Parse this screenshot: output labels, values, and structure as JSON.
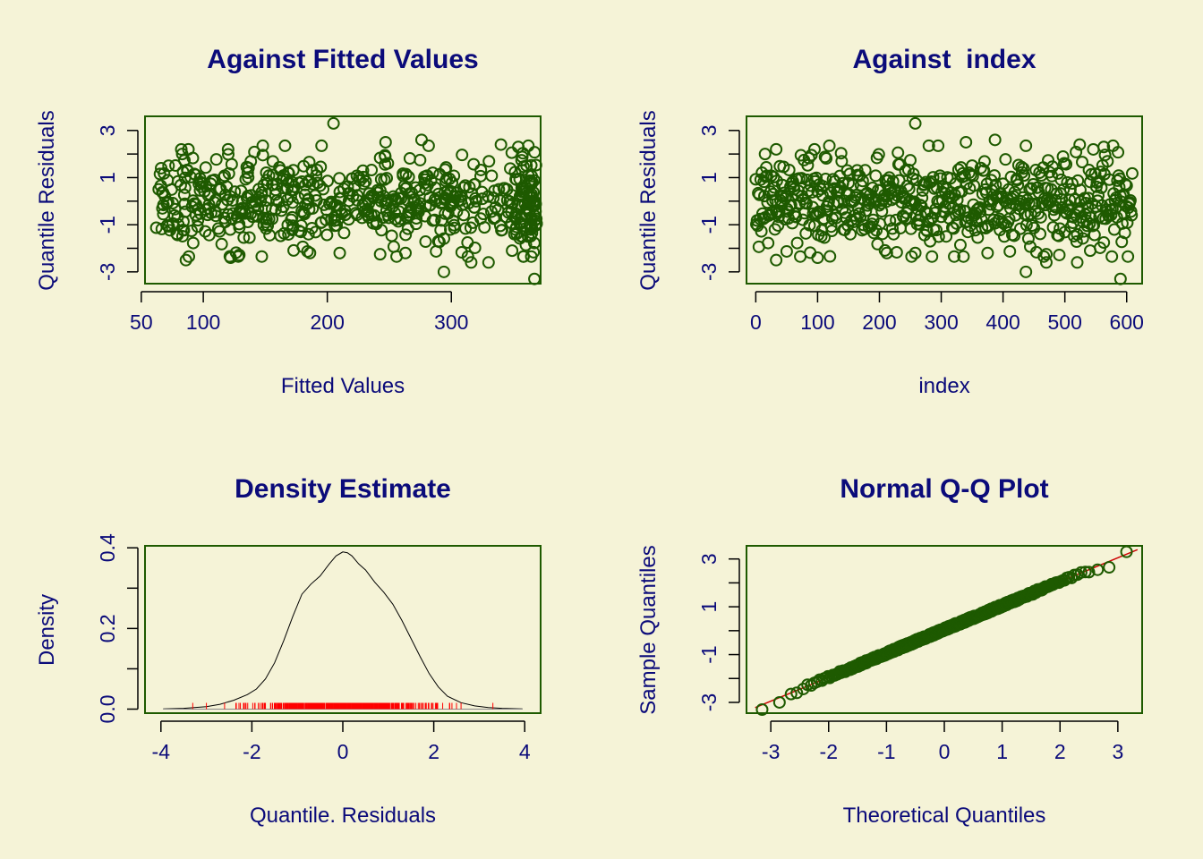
{
  "colors": {
    "background": "#F5F3D7",
    "text": "#0B0B7A",
    "points": "#1E5A00",
    "frame": "#1E5A00",
    "rug": "#FF0000",
    "refline": "#CC0000",
    "density": "#000000"
  },
  "chart_data": [
    {
      "id": "fitted",
      "type": "scatter",
      "title": "Against Fitted Values",
      "xlabel": "Fitted Values",
      "ylabel": "Quantile Residuals",
      "xlim": [
        53,
        372
      ],
      "ylim": [
        -3.5,
        3.6
      ],
      "xticks": [
        50,
        100,
        200,
        300
      ],
      "yticks": [
        -3,
        -2,
        -1,
        0,
        1,
        2,
        3
      ],
      "ytick_labels": [
        "-3",
        "",
        "-1",
        "",
        "1",
        "",
        "3"
      ],
      "n_points": 610,
      "x_range": [
        62,
        369
      ],
      "y_range": [
        -3.3,
        3.3
      ],
      "points": [
        [
          205,
          3.3
        ],
        [
          367,
          -3.3
        ],
        [
          294,
          -3.0
        ],
        [
          86,
          -2.5
        ],
        [
          122,
          -2.4
        ],
        [
          276,
          2.6
        ],
        [
          247,
          2.5
        ],
        [
          340,
          2.4
        ],
        [
          354,
          2.3
        ],
        [
          120,
          2.2
        ],
        [
          88,
          2.2
        ],
        [
          83,
          2.0
        ],
        [
          330,
          -2.6
        ],
        [
          316,
          -2.6
        ],
        [
          263,
          -2.2
        ],
        [
          186,
          -2.2
        ],
        [
          210,
          -2.2
        ],
        [
          349,
          -2.1
        ],
        [
          72,
          1.5
        ],
        [
          66,
          1.4
        ]
      ]
    },
    {
      "id": "index",
      "type": "scatter",
      "title": "Against  index",
      "xlabel": "index",
      "ylabel": "Quantile Residuals",
      "xlim": [
        -15,
        625
      ],
      "ylim": [
        -3.5,
        3.6
      ],
      "xticks": [
        0,
        100,
        200,
        300,
        400,
        500,
        600
      ],
      "yticks": [
        -3,
        -2,
        -1,
        0,
        1,
        2,
        3
      ],
      "ytick_labels": [
        "-3",
        "",
        "-1",
        "",
        "1",
        "",
        "3"
      ],
      "n_points": 610,
      "x_range": [
        0,
        610
      ],
      "y_range": [
        -3.3,
        3.3
      ],
      "points": [
        [
          258,
          3.3
        ],
        [
          590,
          -3.3
        ],
        [
          437,
          -3.0
        ],
        [
          33,
          -2.5
        ],
        [
          100,
          -2.4
        ],
        [
          387,
          2.6
        ],
        [
          340,
          2.5
        ],
        [
          524,
          2.4
        ],
        [
          563,
          2.3
        ],
        [
          95,
          2.2
        ],
        [
          33,
          2.2
        ],
        [
          15,
          2.0
        ],
        [
          470,
          -2.6
        ],
        [
          520,
          -2.6
        ],
        [
          258,
          -2.2
        ],
        [
          212,
          -2.2
        ],
        [
          375,
          -2.2
        ],
        [
          541,
          -2.1
        ]
      ]
    },
    {
      "id": "density",
      "type": "line",
      "title": "Density Estimate",
      "xlabel": "Quantile. Residuals",
      "ylabel": "Density",
      "xlim": [
        -4.35,
        4.35
      ],
      "ylim": [
        -0.01,
        0.405
      ],
      "xticks": [
        -4,
        -2,
        0,
        2,
        4
      ],
      "yticks": [
        0,
        0.1,
        0.2,
        0.3,
        0.4
      ],
      "ytick_labels": [
        "0.0",
        "",
        "0.2",
        "",
        "0.4"
      ],
      "x": [
        -3.95,
        -3.5,
        -3.0,
        -2.7,
        -2.4,
        -2.1,
        -1.9,
        -1.7,
        -1.5,
        -1.3,
        -1.1,
        -0.9,
        -0.7,
        -0.5,
        -0.3,
        -0.15,
        0.0,
        0.1,
        0.2,
        0.35,
        0.5,
        0.7,
        0.9,
        1.1,
        1.3,
        1.5,
        1.7,
        1.9,
        2.1,
        2.3,
        2.6,
        2.9,
        3.2,
        3.5,
        3.95
      ],
      "y": [
        0.0005,
        0.002,
        0.006,
        0.012,
        0.022,
        0.036,
        0.05,
        0.075,
        0.115,
        0.17,
        0.23,
        0.285,
        0.31,
        0.33,
        0.36,
        0.38,
        0.39,
        0.388,
        0.38,
        0.36,
        0.345,
        0.315,
        0.29,
        0.26,
        0.22,
        0.175,
        0.13,
        0.088,
        0.055,
        0.032,
        0.016,
        0.008,
        0.004,
        0.002,
        0.0005
      ],
      "rug_range": [
        -3.3,
        3.3
      ]
    },
    {
      "id": "qq",
      "type": "scatter",
      "title": "Normal Q-Q Plot",
      "xlabel": "Theoretical Quantiles",
      "ylabel": "Sample Quantiles",
      "xlim": [
        -3.42,
        3.42
      ],
      "ylim": [
        -3.45,
        3.55
      ],
      "xticks": [
        -3,
        -2,
        -1,
        0,
        1,
        2,
        3
      ],
      "yticks": [
        -3,
        -2,
        -1,
        0,
        1,
        2,
        3
      ],
      "ytick_labels": [
        "-3",
        "",
        "-1",
        "",
        "1",
        "",
        "3"
      ],
      "n_points": 610,
      "reference_line": {
        "slope": 1.0,
        "intercept": 0.05
      },
      "points": [
        [
          -3.15,
          -3.3
        ],
        [
          -2.85,
          -3.0
        ],
        [
          -2.65,
          -2.65
        ],
        [
          -2.55,
          -2.6
        ],
        [
          3.15,
          3.3
        ],
        [
          2.85,
          2.65
        ],
        [
          2.65,
          2.55
        ],
        [
          2.5,
          2.45
        ]
      ]
    }
  ]
}
